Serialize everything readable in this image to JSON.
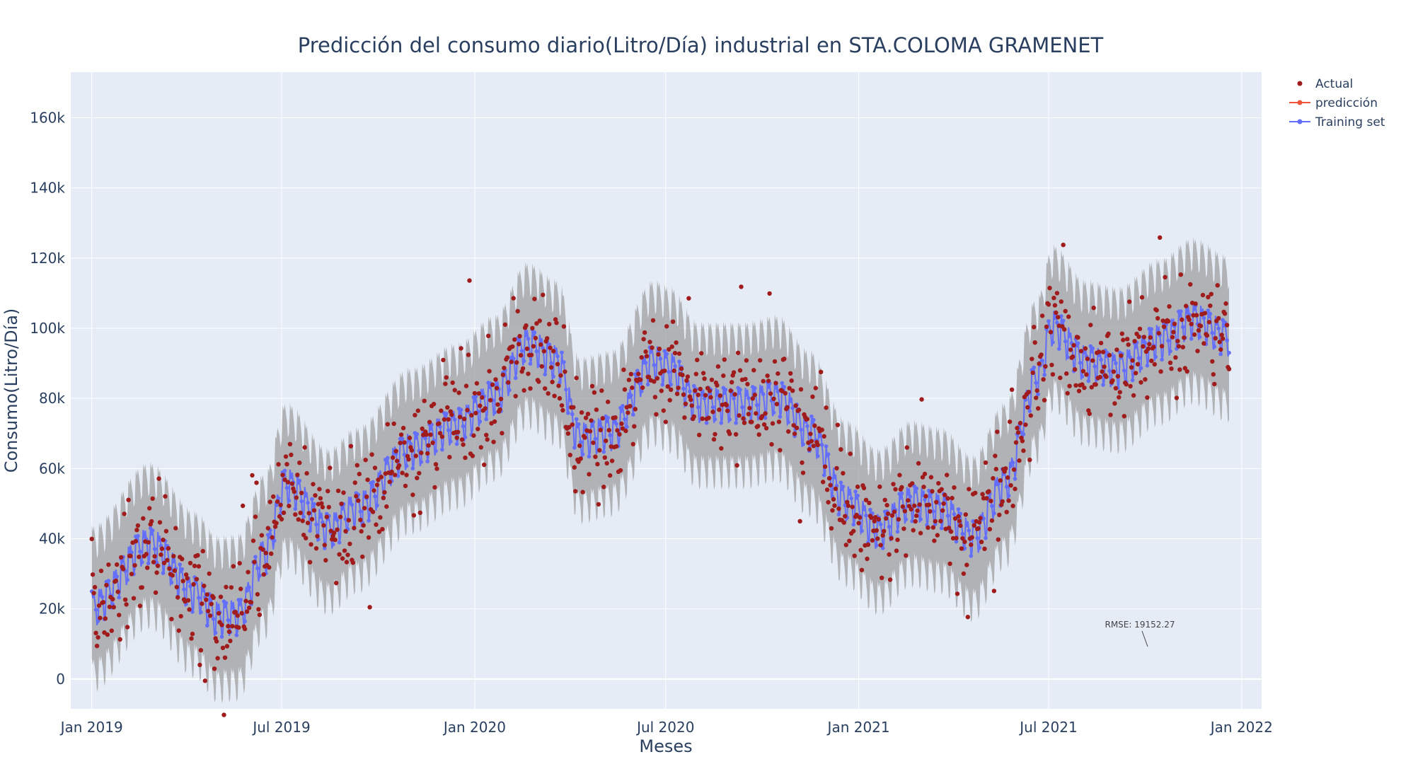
{
  "chart_data": {
    "type": "scatter",
    "title": "Predicción del consumo diario(Litro/Día) industrial en STA.COLOMA GRAMENET",
    "xlabel": "Meses",
    "ylabel": "Consumo(Litro/Día)",
    "x_ticks": [
      {
        "date": "2019-01-01",
        "label": "Jan 2019"
      },
      {
        "date": "2019-07-01",
        "label": "Jul 2019"
      },
      {
        "date": "2020-01-01",
        "label": "Jan 2020"
      },
      {
        "date": "2020-07-01",
        "label": "Jul 2020"
      },
      {
        "date": "2021-01-01",
        "label": "Jan 2021"
      },
      {
        "date": "2021-07-01",
        "label": "Jul 2021"
      },
      {
        "date": "2022-01-01",
        "label": "Jan 2022"
      }
    ],
    "xlim": [
      "2018-12-12",
      "2022-01-20"
    ],
    "y_ticks": [
      {
        "value": 0,
        "label": "0"
      },
      {
        "value": 20000,
        "label": "20k"
      },
      {
        "value": 40000,
        "label": "40k"
      },
      {
        "value": 60000,
        "label": "60k"
      },
      {
        "value": 80000,
        "label": "80k"
      },
      {
        "value": 100000,
        "label": "100k"
      },
      {
        "value": 120000,
        "label": "120k"
      },
      {
        "value": 140000,
        "label": "140k"
      },
      {
        "value": 160000,
        "label": "160k"
      }
    ],
    "ylim": [
      -8500,
      173000
    ],
    "grid": true,
    "legend_position": "top-right",
    "series": [
      {
        "name": "Actual",
        "mode": "markers",
        "color": "#a01c1c"
      },
      {
        "name": "predicción",
        "mode": "lines+markers",
        "color": "#ef553b"
      },
      {
        "name": "Training set",
        "mode": "lines+markers",
        "color": "#636efa"
      }
    ],
    "trend_anchors": [
      {
        "date": "2019-01-01",
        "value": 20000
      },
      {
        "date": "2019-02-25",
        "value": 38000
      },
      {
        "date": "2019-04-10",
        "value": 24000
      },
      {
        "date": "2019-05-01",
        "value": 17000
      },
      {
        "date": "2019-05-20",
        "value": 17500
      },
      {
        "date": "2019-06-15",
        "value": 35000
      },
      {
        "date": "2019-07-05",
        "value": 55000
      },
      {
        "date": "2019-08-15",
        "value": 42000
      },
      {
        "date": "2019-09-10",
        "value": 48000
      },
      {
        "date": "2019-11-01",
        "value": 65000
      },
      {
        "date": "2019-12-15",
        "value": 72000
      },
      {
        "date": "2020-01-20",
        "value": 80000
      },
      {
        "date": "2020-02-20",
        "value": 95000
      },
      {
        "date": "2020-03-20",
        "value": 90000
      },
      {
        "date": "2020-04-10",
        "value": 68000
      },
      {
        "date": "2020-05-10",
        "value": 70000
      },
      {
        "date": "2020-06-20",
        "value": 90000
      },
      {
        "date": "2020-07-05",
        "value": 88000
      },
      {
        "date": "2020-08-01",
        "value": 78000
      },
      {
        "date": "2020-09-15",
        "value": 78000
      },
      {
        "date": "2020-10-15",
        "value": 80000
      },
      {
        "date": "2020-11-15",
        "value": 70000
      },
      {
        "date": "2020-12-20",
        "value": 50000
      },
      {
        "date": "2021-01-20",
        "value": 42000
      },
      {
        "date": "2021-02-20",
        "value": 50000
      },
      {
        "date": "2021-03-20",
        "value": 48000
      },
      {
        "date": "2021-04-20",
        "value": 40000
      },
      {
        "date": "2021-05-20",
        "value": 55000
      },
      {
        "date": "2021-06-20",
        "value": 85000
      },
      {
        "date": "2021-07-05",
        "value": 100000
      },
      {
        "date": "2021-08-05",
        "value": 90000
      },
      {
        "date": "2021-09-05",
        "value": 88000
      },
      {
        "date": "2021-10-15",
        "value": 96000
      },
      {
        "date": "2021-11-15",
        "value": 102000
      },
      {
        "date": "2021-12-20",
        "value": 97000
      }
    ],
    "weekly_amplitude": 5000,
    "confidence_halfwidth": 19000,
    "prediction_start": "2021-12-28",
    "annotation": "RMSE: 19152.27"
  }
}
